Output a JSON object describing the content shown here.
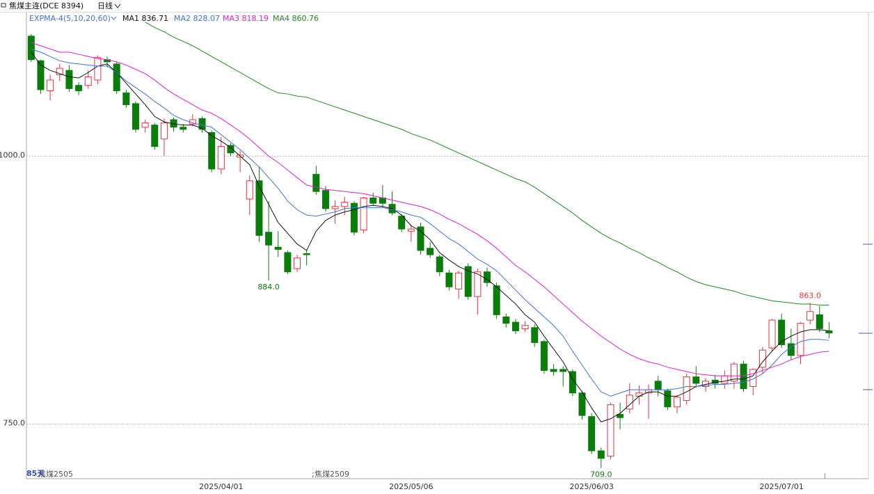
{
  "header": {
    "symbol": "焦煤主连(DCE 8394)",
    "period": "日线",
    "indicator": "EXPMA-4(5,10,20,60)",
    "bar_count": "85天",
    "contracts": [
      "焦煤2505",
      "焦煤2509"
    ]
  },
  "chart_data": {
    "type": "candlestick",
    "categories": [
      null,
      null,
      null,
      null,
      null,
      null,
      null,
      null,
      null,
      null,
      null,
      null,
      null,
      null,
      null,
      null,
      null,
      null,
      null,
      null,
      "2025/04/01",
      null,
      null,
      null,
      null,
      null,
      null,
      null,
      null,
      null,
      null,
      null,
      null,
      null,
      null,
      null,
      null,
      null,
      null,
      null,
      "2025/05/06",
      null,
      null,
      null,
      null,
      null,
      null,
      null,
      null,
      null,
      null,
      null,
      null,
      null,
      null,
      null,
      null,
      null,
      null,
      "2025/06/03",
      null,
      null,
      null,
      null,
      null,
      null,
      null,
      null,
      null,
      null,
      null,
      null,
      null,
      null,
      null,
      null,
      null,
      null,
      null,
      "2025/07/01",
      null,
      null,
      null,
      null,
      null
    ],
    "open": [
      1112,
      1089,
      1061,
      1076,
      1080,
      1066,
      1066,
      1071,
      1090,
      1086,
      1059,
      1049,
      1027,
      1029,
      1016,
      1034,
      1027,
      1030,
      1035,
      1022,
      988,
      1010,
      999,
      960,
      977,
      929,
      915,
      910,
      895,
      909,
      983,
      968,
      951,
      953,
      956,
      931,
      961,
      961,
      955,
      944,
      930,
      934,
      914,
      906,
      891,
      876,
      897,
      869,
      892,
      879,
      850,
      845,
      839,
      840,
      827,
      801,
      801,
      799,
      779,
      757,
      725,
      720,
      759,
      764,
      776,
      779,
      790,
      781,
      766,
      772,
      794,
      785,
      791,
      788,
      790,
      806,
      785,
      803,
      821,
      847,
      825,
      814,
      847,
      852,
      837
    ],
    "high": [
      1114,
      1090,
      1076,
      1086,
      1085,
      1069,
      1080,
      1094,
      1093,
      1088,
      1062,
      1051,
      1034,
      1031,
      1035,
      1036,
      1030,
      1039,
      1037,
      1024,
      1018,
      1012,
      1005,
      982,
      990,
      958,
      930,
      912,
      908,
      912,
      991,
      972,
      959,
      962,
      958,
      962,
      966,
      973,
      967,
      946,
      936,
      938,
      920,
      908,
      894,
      893,
      900,
      895,
      896,
      882,
      853,
      848,
      846,
      843,
      829,
      806,
      804,
      801,
      781,
      760,
      728,
      770,
      770,
      788,
      786,
      787,
      795,
      783,
      777,
      797,
      804,
      793,
      796,
      800,
      808,
      809,
      802,
      822,
      848,
      853,
      839,
      845,
      863,
      860,
      845
    ],
    "low": [
      1088,
      1058,
      1052,
      1070,
      1060,
      1057,
      1063,
      1067,
      1083,
      1058,
      1045,
      1022,
      1022,
      1006,
      1000,
      1023,
      1022,
      1028,
      1022,
      985,
      983,
      1000,
      985,
      945,
      920,
      884,
      906,
      890,
      892,
      898,
      964,
      948,
      937,
      945,
      926,
      928,
      954,
      952,
      945,
      929,
      920,
      908,
      905,
      888,
      875,
      867,
      866,
      852,
      878,
      848,
      840,
      834,
      836,
      822,
      797,
      795,
      785,
      776,
      754,
      722,
      709,
      717,
      745,
      760,
      768,
      755,
      776,
      763,
      760,
      768,
      784,
      780,
      783,
      783,
      783,
      780,
      777,
      797,
      818,
      821,
      810,
      806,
      843,
      836,
      830
    ],
    "close": [
      1090,
      1062,
      1071,
      1082,
      1063,
      1061,
      1074,
      1092,
      1088,
      1061,
      1048,
      1025,
      1031,
      1009,
      1031,
      1027,
      1025,
      1034,
      1025,
      988,
      1009,
      1003,
      1001,
      977,
      926,
      917,
      913,
      892,
      905,
      908,
      967,
      951,
      953,
      957,
      929,
      961,
      956,
      956,
      947,
      932,
      932,
      912,
      908,
      892,
      878,
      891,
      869,
      892,
      882,
      852,
      844,
      837,
      842,
      826,
      800,
      799,
      799,
      779,
      758,
      725,
      718,
      768,
      756,
      777,
      779,
      782,
      782,
      766,
      775,
      794,
      788,
      790,
      788,
      795,
      806,
      783,
      801,
      819,
      847,
      824,
      814,
      844,
      855,
      839,
      835
    ],
    "up_color": "#e8323c",
    "down_color": "#0b7d0b",
    "series": [
      {
        "name": "MA1",
        "color": "#111111",
        "legend_value": 836.71,
        "values": [
          1097,
          1085,
          1080,
          1077,
          1074,
          1073,
          1078,
          1084,
          1086,
          1078,
          1068,
          1058,
          1048,
          1037,
          1032,
          1030,
          1029,
          1029,
          1026,
          1019,
          1014,
          1008,
          1000,
          992,
          972,
          955,
          938,
          928,
          918,
          912,
          930,
          940,
          945,
          948,
          950,
          953,
          954,
          953,
          951,
          945,
          935,
          930,
          922,
          910,
          903,
          897,
          893,
          890,
          885,
          878,
          870,
          862,
          852,
          845,
          832,
          820,
          808,
          792,
          780,
          765,
          752,
          755,
          760,
          768,
          776,
          780,
          780,
          776,
          776,
          780,
          785,
          787,
          789,
          790,
          792,
          792,
          795,
          808,
          818,
          827,
          832,
          836,
          838,
          838,
          837
        ]
      },
      {
        "name": "MA2",
        "color": "#3b74d9",
        "legend_value": 828.07,
        "values": [
          1100,
          1097,
          1093,
          1089,
          1087,
          1086,
          1085,
          1084,
          1084,
          1078,
          1070,
          1064,
          1058,
          1051,
          1045,
          1038,
          1034,
          1031,
          1029,
          1027,
          1020,
          1013,
          1006,
          998,
          990,
          980,
          970,
          958,
          950,
          945,
          944,
          946,
          948,
          951,
          952,
          952,
          952,
          952,
          950,
          948,
          945,
          943,
          937,
          930,
          923,
          918,
          911,
          904,
          899,
          893,
          884,
          875,
          866,
          858,
          850,
          842,
          832,
          818,
          805,
          792,
          780,
          776,
          779,
          782,
          782,
          782,
          782,
          782,
          783,
          785,
          785,
          786,
          787,
          787,
          788,
          789,
          792,
          797,
          805,
          815,
          822,
          827,
          829,
          829,
          828
        ]
      },
      {
        "name": "MA3",
        "color": "#e01ed2",
        "legend_value": 818.19,
        "values": [
          1106,
          1103,
          1100,
          1097,
          1097,
          1095,
          1093,
          1091,
          1090,
          1088,
          1085,
          1081,
          1077,
          1071,
          1064,
          1058,
          1053,
          1048,
          1043,
          1040,
          1035,
          1029,
          1023,
          1016,
          1008,
          1000,
          994,
          987,
          980,
          973,
          971,
          969,
          968,
          967,
          966,
          965,
          963,
          961,
          959,
          957,
          955,
          953,
          950,
          946,
          941,
          937,
          932,
          927,
          921,
          914,
          906,
          898,
          892,
          885,
          878,
          870,
          862,
          854,
          846,
          839,
          832,
          826,
          820,
          815,
          811,
          808,
          806,
          803,
          801,
          799,
          797,
          796,
          795,
          795,
          795,
          795,
          797,
          800,
          803,
          806,
          810,
          813,
          815,
          817,
          818
        ]
      },
      {
        "name": "MA4",
        "color": "#1f8a1f",
        "legend_value": 860.76,
        "values": [
          null,
          null,
          null,
          null,
          null,
          null,
          null,
          null,
          null,
          null,
          null,
          null,
          1125,
          1120,
          1116,
          1111,
          1107,
          1103,
          1098,
          1093,
          1088,
          1083,
          1078,
          1073,
          1068,
          1063,
          1059,
          1058,
          1056,
          1055,
          1052,
          1049,
          1046,
          1043,
          1040,
          1037,
          1034,
          1031,
          1028,
          1025,
          1021,
          1018,
          1015,
          1011,
          1007,
          1003,
          999,
          995,
          991,
          987,
          983,
          979,
          976,
          971,
          965,
          959,
          953,
          947,
          940,
          934,
          928,
          923,
          919,
          914,
          910,
          905,
          901,
          896,
          892,
          887,
          883,
          880,
          878,
          876,
          874,
          871,
          869,
          867,
          865,
          864,
          863,
          862,
          862,
          861,
          861
        ]
      }
    ],
    "ylim": [
      699,
      1134
    ],
    "yticks": [
      {
        "value": 750,
        "label": "750.0"
      },
      {
        "value": 1000,
        "label": "1000.0"
      }
    ],
    "grid": true,
    "annotations": [
      {
        "value": 884,
        "label": "884.0"
      },
      {
        "value": 709,
        "label": "709.0"
      },
      {
        "value": 863,
        "label": "863.0"
      }
    ]
  }
}
